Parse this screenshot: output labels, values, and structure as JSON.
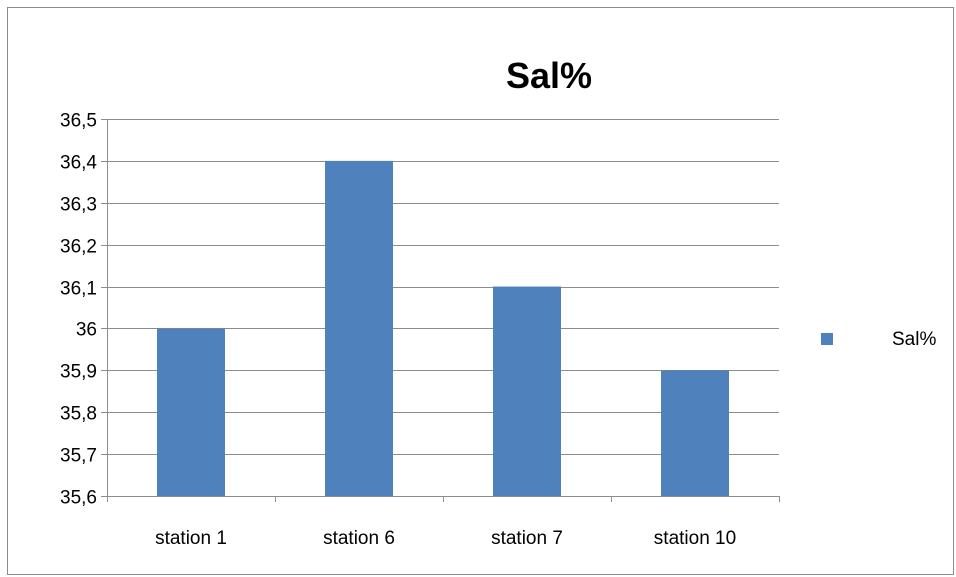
{
  "chart_data": {
    "type": "bar",
    "title": "Sal%",
    "categories": [
      "station 1",
      "station 6",
      "station 7",
      "station 10"
    ],
    "series": [
      {
        "name": "Sal%",
        "values": [
          36.0,
          36.4,
          36.1,
          35.9
        ],
        "color": "#4f81bd"
      }
    ],
    "y_ticks": [
      "35,6",
      "35,7",
      "35,8",
      "35,9",
      "36",
      "36,1",
      "36,2",
      "36,3",
      "36,4",
      "36,5"
    ],
    "ylim": [
      35.6,
      36.5
    ],
    "ystep": 0.1,
    "grid": true,
    "legend": "right"
  }
}
